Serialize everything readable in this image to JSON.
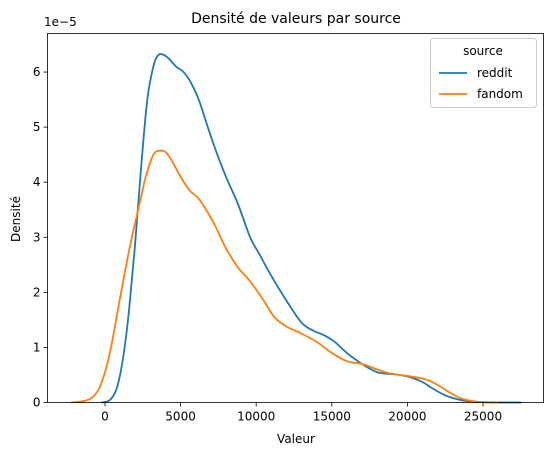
{
  "chart_data": {
    "type": "line",
    "title": "Densité de valeurs par source",
    "xlabel": "Valeur",
    "ylabel": "Densité",
    "y_offset_label": "1e−5",
    "xlim": [
      -3800,
      29000
    ],
    "ylim": [
      0,
      6.7
    ],
    "x_ticks": [
      0,
      5000,
      10000,
      15000,
      20000,
      25000
    ],
    "x_tick_labels": [
      "0",
      "5000",
      "10000",
      "15000",
      "20000",
      "25000"
    ],
    "y_ticks": [
      0,
      1,
      2,
      3,
      4,
      5,
      6
    ],
    "y_tick_labels": [
      "0",
      "1",
      "2",
      "3",
      "4",
      "5",
      "6"
    ],
    "grid": false,
    "legend": {
      "title": "source",
      "placement": "top-right"
    },
    "series": [
      {
        "name": "reddit",
        "color": "#1f77b4",
        "x": [
          -200,
          300,
          700,
          1000,
          1300,
          1600,
          2000,
          2400,
          2800,
          3200,
          3500,
          3800,
          4200,
          4700,
          5200,
          5700,
          6200,
          6800,
          7300,
          8000,
          8800,
          9600,
          10200,
          11000,
          12000,
          13000,
          13800,
          14500,
          15200,
          16000,
          17000,
          18000,
          18800,
          19500,
          20300,
          21000,
          21700,
          22500,
          23300,
          24100,
          25000,
          26000,
          27500
        ],
        "values": [
          0,
          0.04,
          0.2,
          0.5,
          1.0,
          1.7,
          2.9,
          4.3,
          5.5,
          6.1,
          6.3,
          6.32,
          6.25,
          6.1,
          6.0,
          5.8,
          5.5,
          5.0,
          4.6,
          4.1,
          3.6,
          3.0,
          2.7,
          2.3,
          1.85,
          1.45,
          1.3,
          1.22,
          1.1,
          0.9,
          0.7,
          0.55,
          0.52,
          0.5,
          0.45,
          0.37,
          0.25,
          0.13,
          0.06,
          0.02,
          0.005,
          0.001,
          0
        ]
      },
      {
        "name": "fandom",
        "color": "#ff7f0e",
        "x": [
          -2200,
          -1500,
          -900,
          -400,
          0,
          400,
          800,
          1200,
          1700,
          2200,
          2700,
          3200,
          3600,
          4000,
          4400,
          5000,
          5600,
          6200,
          6800,
          7300,
          8000,
          8800,
          9600,
          10500,
          11200,
          12000,
          13000,
          14000,
          15000,
          16000,
          17000,
          18000,
          18800,
          19500,
          20300,
          21200,
          22000,
          22800,
          23500,
          24200,
          25000,
          26000
        ],
        "values": [
          0.002,
          0.02,
          0.08,
          0.25,
          0.55,
          1.0,
          1.6,
          2.2,
          2.9,
          3.5,
          4.1,
          4.5,
          4.57,
          4.55,
          4.4,
          4.1,
          3.85,
          3.7,
          3.45,
          3.2,
          2.8,
          2.45,
          2.2,
          1.85,
          1.55,
          1.38,
          1.25,
          1.1,
          0.9,
          0.75,
          0.7,
          0.6,
          0.53,
          0.5,
          0.47,
          0.42,
          0.32,
          0.18,
          0.08,
          0.03,
          0.008,
          0
        ]
      }
    ]
  }
}
